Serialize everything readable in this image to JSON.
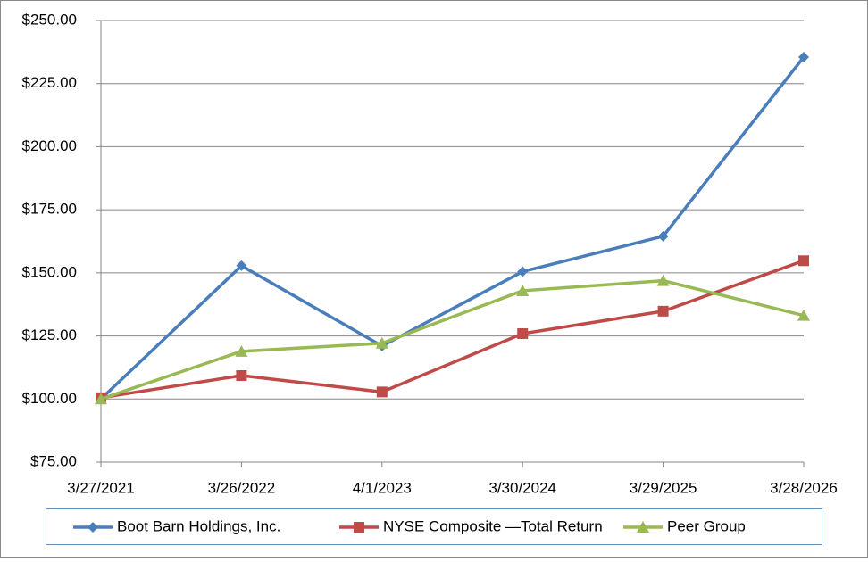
{
  "chart_data": {
    "type": "line",
    "categories": [
      "3/27/2021",
      "3/26/2022",
      "4/1/2023",
      "3/30/2024",
      "3/29/2025",
      "3/28/2026"
    ],
    "series": [
      {
        "name": "Boot Barn Holdings, Inc.",
        "color": "#4a7ebb",
        "marker": "diamond",
        "values": [
          100,
          152.8,
          121,
          150.5,
          164.5,
          235.5
        ]
      },
      {
        "name": "NYSE Composite —Total  Return",
        "color": "#be4b48",
        "marker": "square",
        "values": [
          100.5,
          109.3,
          102.8,
          125.9,
          134.8,
          154.8
        ]
      },
      {
        "name": "Peer Group",
        "color": "#98b954",
        "marker": "triangle",
        "values": [
          100,
          118.9,
          122.1,
          142.9,
          146.9,
          133.1
        ]
      }
    ],
    "ylim": [
      75,
      250
    ],
    "yticks": [
      {
        "value": 75,
        "label": "$75.00"
      },
      {
        "value": 100,
        "label": "$100.00"
      },
      {
        "value": 125,
        "label": "$125.00"
      },
      {
        "value": 150,
        "label": "$150.00"
      },
      {
        "value": 175,
        "label": "$175.00"
      },
      {
        "value": 200,
        "label": "$200.00"
      },
      {
        "value": 225,
        "label": "$225.00"
      },
      {
        "value": 250,
        "label": "$250.00"
      }
    ],
    "grid": true
  }
}
